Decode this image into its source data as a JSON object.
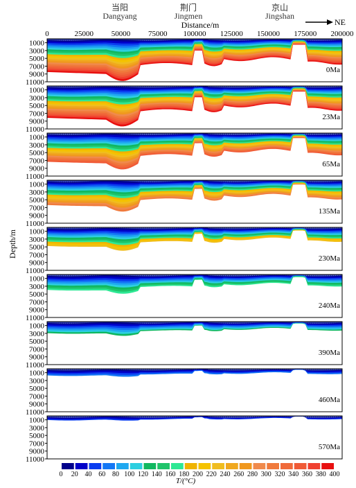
{
  "chart_data": {
    "type": "heatmap",
    "x_axis": {
      "label": "Distance/m",
      "ticks": [
        0,
        25000,
        50000,
        75000,
        100000,
        125000,
        150000,
        175000,
        200000
      ],
      "range": [
        0,
        200000
      ]
    },
    "y_axis": {
      "label": "Depth/m",
      "ticks": [
        1000,
        3000,
        5000,
        7000,
        9000,
        11000
      ],
      "range": [
        0,
        11000
      ],
      "inverted": true
    },
    "locations": [
      {
        "zh": "当阳",
        "en": "Dangyang",
        "x": 50000
      },
      {
        "zh": "荆门",
        "en": "Jingmen",
        "x": 102000
      },
      {
        "zh": "京山",
        "en": "Jingshan",
        "x": 158000
      }
    ],
    "direction_label": "NE",
    "panels": [
      {
        "age": "0Ma",
        "depth_scale": 1.0
      },
      {
        "age": "23Ma",
        "depth_scale": 0.96
      },
      {
        "age": "65Ma",
        "depth_scale": 0.86
      },
      {
        "age": "135Ma",
        "depth_scale": 0.74
      },
      {
        "age": "230Ma",
        "depth_scale": 0.55
      },
      {
        "age": "240Ma",
        "depth_scale": 0.45
      },
      {
        "age": "390Ma",
        "depth_scale": 0.33
      },
      {
        "age": "460Ma",
        "depth_scale": 0.18
      },
      {
        "age": "570Ma",
        "depth_scale": 0.1
      }
    ],
    "colorbar": {
      "label": "T/(°C)",
      "ticks": [
        0,
        20,
        40,
        60,
        80,
        100,
        120,
        140,
        160,
        180,
        200,
        220,
        240,
        260,
        280,
        300,
        320,
        340,
        360,
        380,
        400
      ],
      "colors": [
        "#00008b",
        "#0000c8",
        "#0a3cf0",
        "#1477f5",
        "#1fa8f0",
        "#2ccfe0",
        "#10b860",
        "#1fc46a",
        "#2ee894",
        "#f0b400",
        "#f5c300",
        "#f0bd1f",
        "#f0a81e",
        "#f0981e",
        "#f08a4c",
        "#f07a3c",
        "#f06a3a",
        "#f05a36",
        "#f04030",
        "#e81010"
      ]
    }
  }
}
